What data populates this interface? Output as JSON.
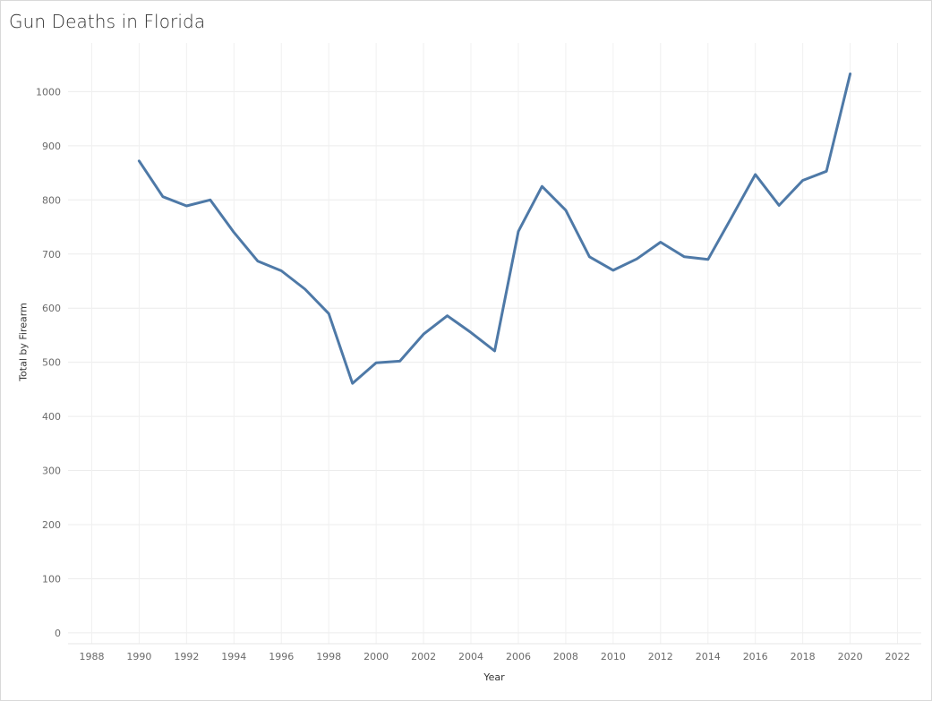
{
  "chart_data": {
    "type": "line",
    "title": "Gun Deaths in Florida",
    "xlabel": "Year",
    "ylabel": "Total by Firearm",
    "xlim": [
      1987,
      2023
    ],
    "ylim": [
      -20,
      1090
    ],
    "x_ticks": [
      1988,
      1990,
      1992,
      1994,
      1996,
      1998,
      2000,
      2002,
      2004,
      2006,
      2008,
      2010,
      2012,
      2014,
      2016,
      2018,
      2020,
      2022
    ],
    "y_ticks": [
      0,
      100,
      200,
      300,
      400,
      500,
      600,
      700,
      800,
      900,
      1000
    ],
    "grid": true,
    "line_color": "#4e79a7",
    "series": [
      {
        "x": [
          1990,
          1991,
          1992,
          1993,
          1994,
          1995,
          1996,
          1997,
          1998,
          1999,
          2000,
          2001,
          2002,
          2003,
          2004,
          2005,
          2006,
          2007,
          2008,
          2009,
          2010,
          2011,
          2012,
          2013,
          2014,
          2015,
          2016,
          2017,
          2018,
          2019,
          2020
        ],
        "y": [
          872,
          806,
          789,
          800,
          740,
          687,
          669,
          635,
          590,
          461,
          499,
          502,
          552,
          586,
          555,
          521,
          742,
          825,
          781,
          695,
          670,
          691,
          722,
          695,
          690,
          768,
          847,
          790,
          836,
          853,
          1033
        ]
      }
    ]
  }
}
